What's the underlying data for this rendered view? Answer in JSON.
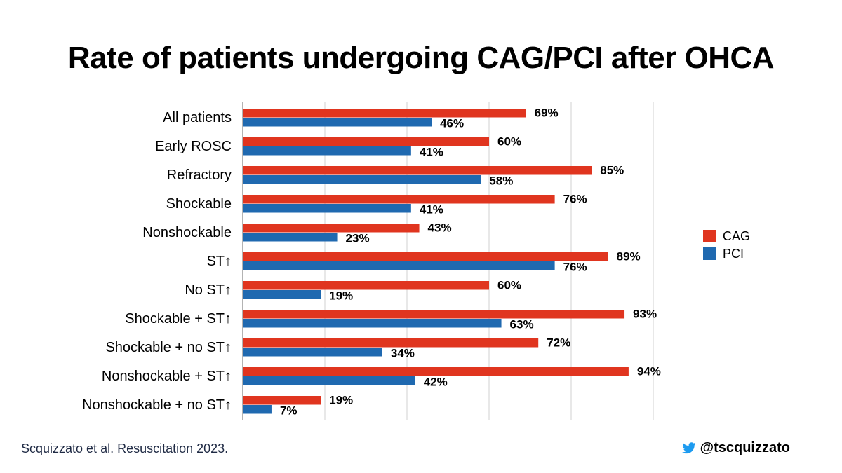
{
  "title": "Rate of patients undergoing CAG/PCI after OHCA",
  "citation": "Scquizzato et al. Resuscitation 2023.",
  "handle": "@tscquizzato",
  "icons": {
    "handle": "bird-icon"
  },
  "colors": {
    "CAG": "#e0351f",
    "PCI": "#1f69b0",
    "bird": "#1d9bf0"
  },
  "chart_data": {
    "type": "bar",
    "orientation": "horizontal",
    "categories": [
      "All patients",
      "Early ROSC",
      "Refractory",
      "Shockable",
      "Nonshockable",
      "ST↑",
      "No ST↑",
      "Shockable + ST↑",
      "Shockable + no ST↑",
      "Nonshockable + ST↑",
      "Nonshockable + no ST↑"
    ],
    "series": [
      {
        "name": "CAG",
        "values": [
          69,
          60,
          85,
          76,
          43,
          89,
          60,
          93,
          72,
          94,
          19
        ]
      },
      {
        "name": "PCI",
        "values": [
          46,
          41,
          58,
          41,
          23,
          76,
          19,
          63,
          34,
          42,
          7
        ]
      }
    ],
    "value_suffix": "%",
    "xlim": [
      0,
      100
    ],
    "grid": true,
    "legend_position": "right"
  }
}
